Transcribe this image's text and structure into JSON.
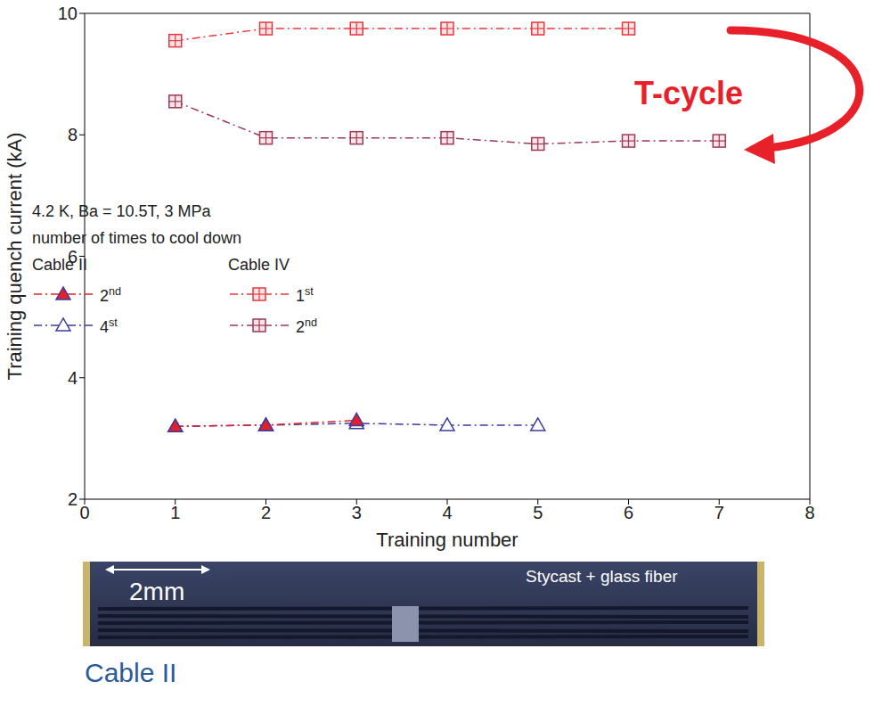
{
  "chart_data": {
    "type": "line",
    "x_label": "Training number",
    "y_label": "Training quench current (kA)",
    "xlim": [
      0,
      8
    ],
    "xticks": [
      0,
      1,
      2,
      3,
      4,
      5,
      6,
      7,
      8
    ],
    "ylim": [
      2,
      10
    ],
    "yticks": [
      2,
      4,
      6,
      8,
      10
    ],
    "grid": false,
    "legend": "left",
    "legend_title": [
      "4.2 K, Ba = 10.5T, 3 MPa",
      "number of times to cool down"
    ],
    "annotations": [
      "T-cycle"
    ],
    "series": [
      {
        "name": "2nd",
        "group": "Cable II",
        "color": "#e0202a",
        "marker": "triangle",
        "line_style": "dashdot",
        "x": [
          1,
          2,
          3
        ],
        "values": [
          3.2,
          3.22,
          3.3
        ]
      },
      {
        "name": "4st",
        "group": "Cable II",
        "color": "#3a3aa0",
        "marker": "triangle-open",
        "line_style": "dashdot",
        "x": [
          1,
          2,
          3,
          4,
          5
        ],
        "values": [
          3.2,
          3.22,
          3.25,
          3.22,
          3.22
        ]
      },
      {
        "name": "1st",
        "group": "Cable IV",
        "color": "#e8383d",
        "marker": "square-cross",
        "line_style": "dashdot",
        "x": [
          1,
          2,
          3,
          4,
          5,
          6
        ],
        "values": [
          9.55,
          9.75,
          9.75,
          9.75,
          9.75,
          9.75
        ]
      },
      {
        "name": "2nd",
        "group": "Cable IV",
        "color": "#9b3a5a",
        "marker": "square-cross",
        "line_style": "dashdot",
        "x": [
          1,
          2,
          3,
          4,
          5,
          6,
          7
        ],
        "values": [
          8.55,
          7.95,
          7.95,
          7.95,
          7.85,
          7.9,
          7.9
        ]
      }
    ]
  },
  "image": {
    "scale_label": "2mm",
    "label": "Stycast + glass fiber",
    "caption": "Cable II"
  }
}
